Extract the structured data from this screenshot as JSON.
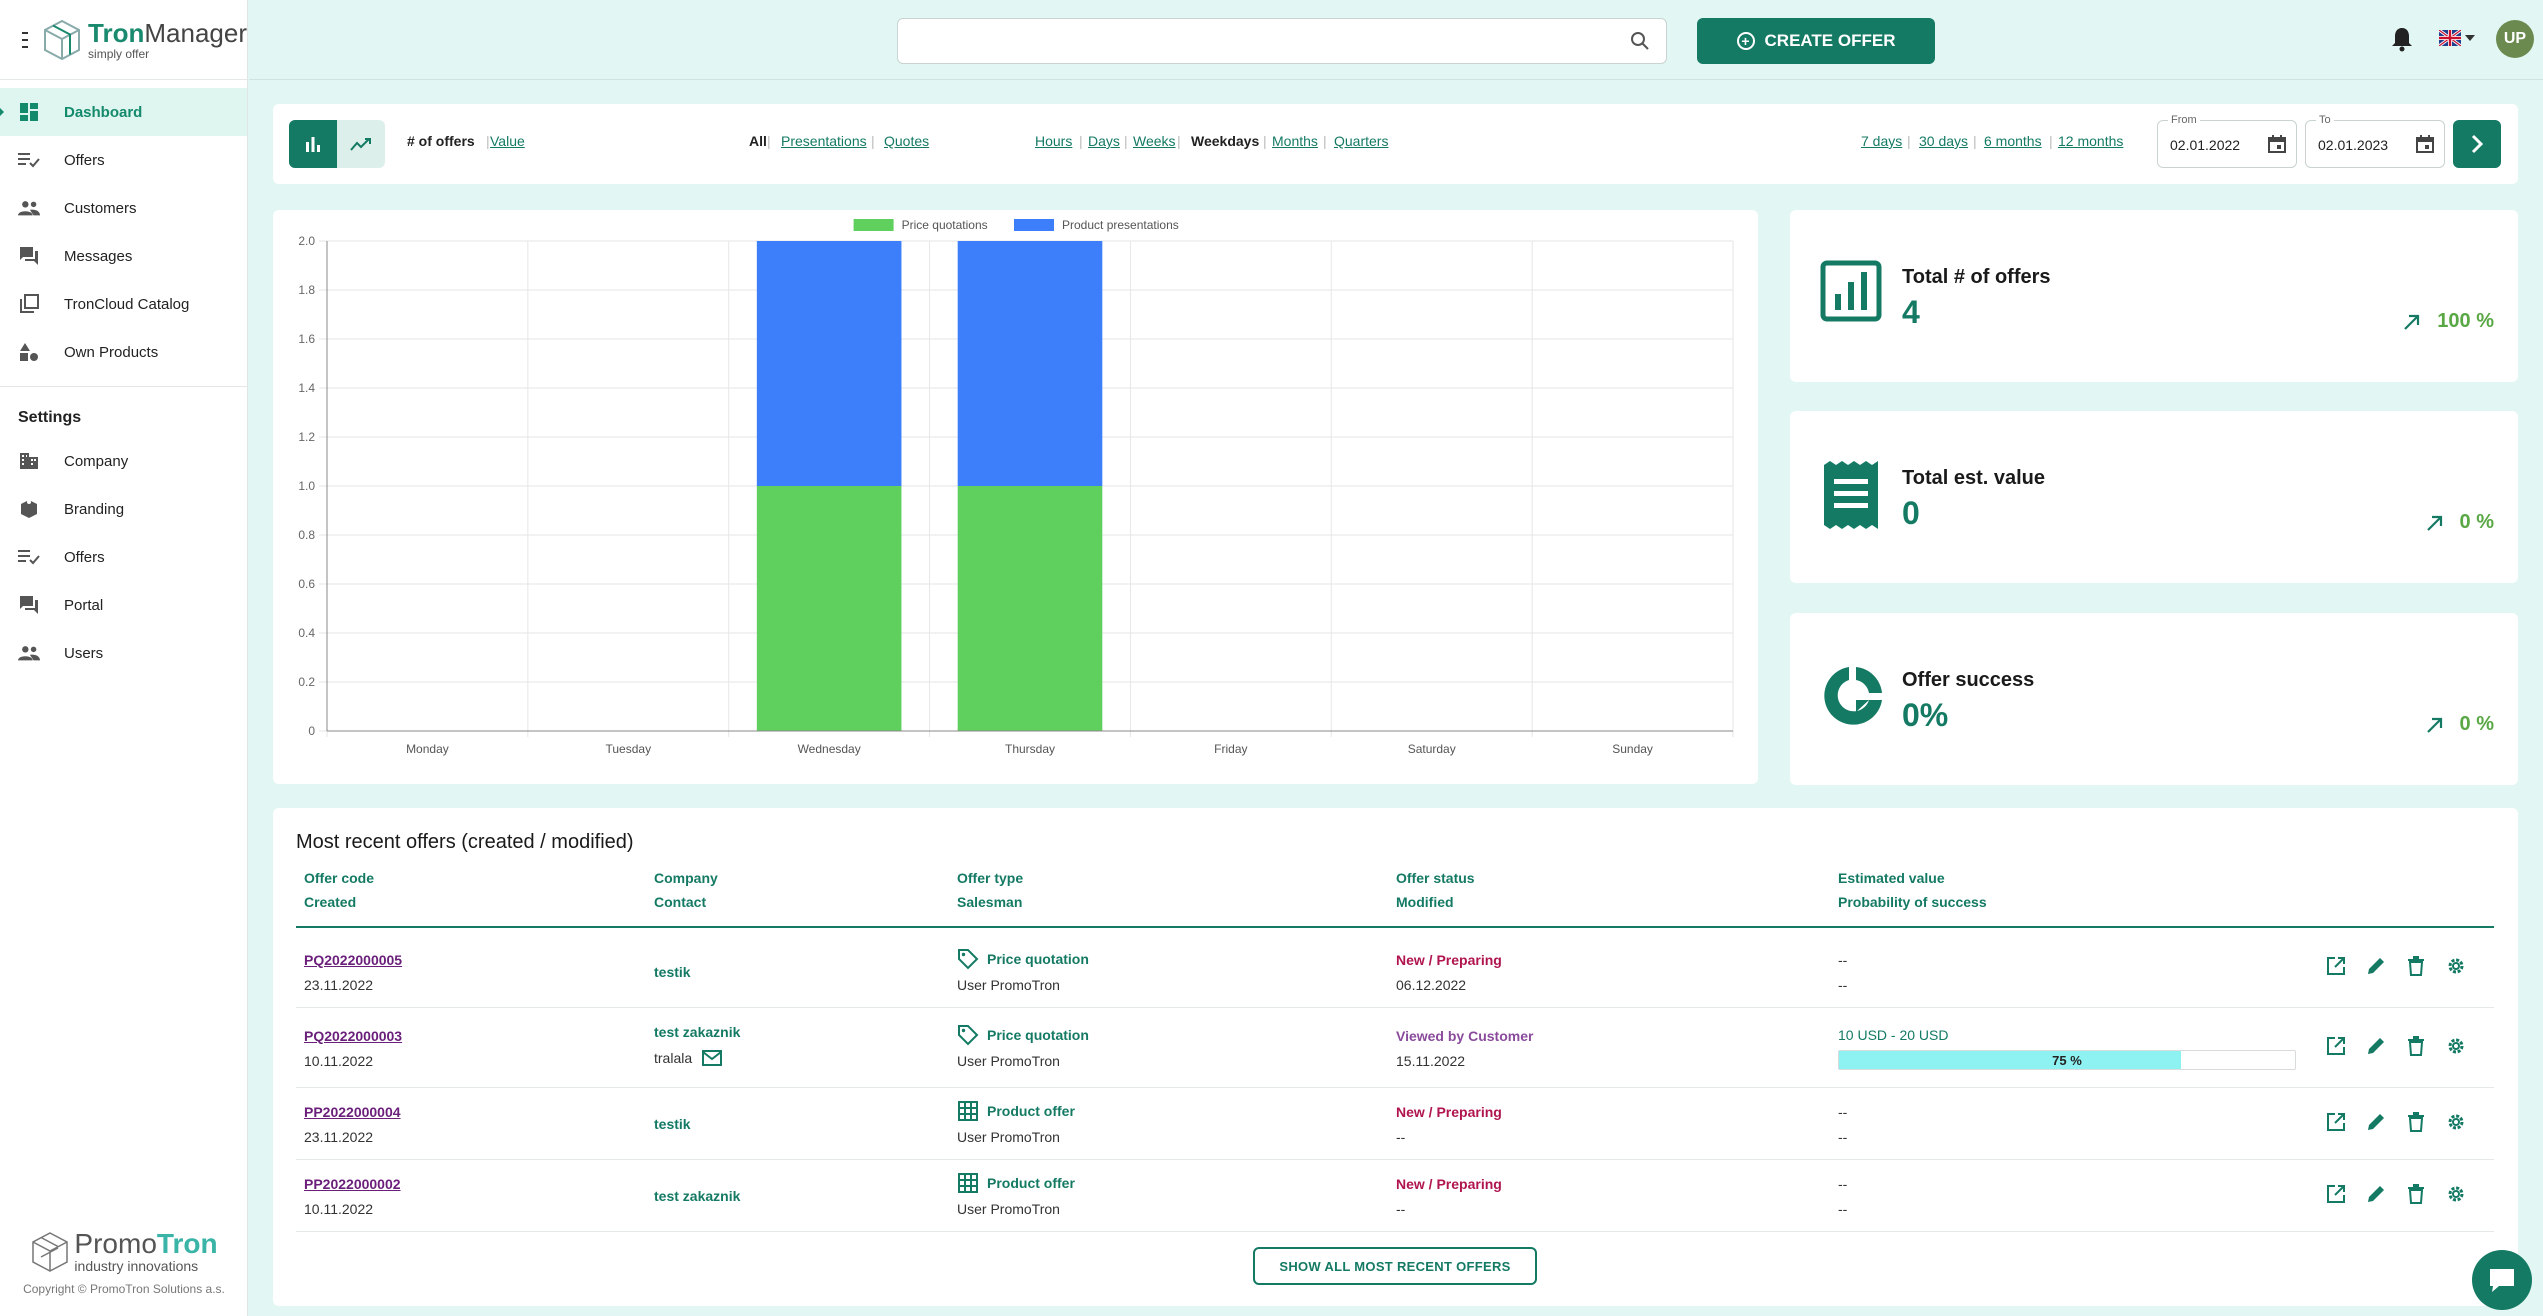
{
  "app": {
    "title_bold": "Tron",
    "title_rest": "Manager",
    "subtitle": "simply offer"
  },
  "sidebar": {
    "items": [
      {
        "label": "Dashboard",
        "icon": "dashboard-icon"
      },
      {
        "label": "Offers",
        "icon": "list-check-icon"
      },
      {
        "label": "Customers",
        "icon": "people-icon"
      },
      {
        "label": "Messages",
        "icon": "chat-icon"
      },
      {
        "label": "TronCloud Catalog",
        "icon": "catalog-icon"
      },
      {
        "label": "Own Products",
        "icon": "shapes-icon"
      }
    ],
    "settings_title": "Settings",
    "settings_items": [
      {
        "label": "Company",
        "icon": "building-icon"
      },
      {
        "label": "Branding",
        "icon": "branding-icon"
      },
      {
        "label": "Offers",
        "icon": "list-check-icon"
      },
      {
        "label": "Portal",
        "icon": "chat-icon"
      },
      {
        "label": "Users",
        "icon": "people-icon"
      }
    ],
    "footer": {
      "brand_a": "Promo",
      "brand_b": "Tron",
      "brand_sub": "industry innovations",
      "copyright": "Copyright © PromoTron Solutions a.s."
    }
  },
  "topbar": {
    "search_placeholder": "",
    "create_label": "CREATE OFFER",
    "avatar_initials": "UP"
  },
  "filters": {
    "metrics": [
      "# of offers",
      "Value"
    ],
    "types": [
      "All",
      "Presentations",
      "Quotes"
    ],
    "granularity": [
      "Hours",
      "Days",
      "Weeks",
      "Weekdays",
      "Months",
      "Quarters"
    ],
    "periods": [
      "7 days",
      "30 days",
      "6 months",
      "12 months"
    ],
    "from_label": "From",
    "from_value": "02.01.2022",
    "to_label": "To",
    "to_value": "02.01.2023",
    "selected_metric": "# of offers",
    "selected_type": "All",
    "selected_granularity": "Weekdays"
  },
  "chart_data": {
    "type": "bar",
    "stacked": true,
    "categories": [
      "Monday",
      "Tuesday",
      "Wednesday",
      "Thursday",
      "Friday",
      "Saturday",
      "Sunday"
    ],
    "series": [
      {
        "name": "Price quotations",
        "color": "#5fcf5d",
        "values": [
          0,
          0,
          1,
          1,
          0,
          0,
          0
        ]
      },
      {
        "name": "Product presentations",
        "color": "#3d7ffb",
        "values": [
          0,
          0,
          1,
          1,
          0,
          0,
          0
        ]
      }
    ],
    "ylim": [
      0,
      2.0
    ],
    "yticks": [
      "0",
      "0.2",
      "0.4",
      "0.6",
      "0.8",
      "1.0",
      "1.2",
      "1.4",
      "1.6",
      "1.8",
      "2.0"
    ],
    "legend": "top",
    "grid": true
  },
  "stats": [
    {
      "label": "Total # of offers",
      "value": "4",
      "trend": "100 %",
      "icon": "bar-chart-icon"
    },
    {
      "label": "Total est. value",
      "value": "0",
      "trend": "0 %",
      "icon": "receipt-icon"
    },
    {
      "label": "Offer success",
      "value": "0%",
      "trend": "0 %",
      "icon": "pie-chart-icon"
    }
  ],
  "table": {
    "title": "Most recent offers (created / modified)",
    "headers": {
      "code": "Offer code",
      "created": "Created",
      "company": "Company",
      "contact": "Contact",
      "type": "Offer type",
      "salesman": "Salesman",
      "status": "Offer status",
      "modified": "Modified",
      "value": "Estimated value",
      "prob": "Probability of success"
    },
    "rows": [
      {
        "code": "PQ2022000005",
        "created": "23.11.2022",
        "company": "testik",
        "contact": "",
        "type": "Price quotation",
        "type_icon": "tag-icon",
        "salesman": "User PromoTron",
        "status": "New / Preparing",
        "modified": "06.12.2022",
        "value": "--",
        "prob": "--"
      },
      {
        "code": "PQ2022000003",
        "created": "10.11.2022",
        "company": "test zakaznik",
        "contact": "tralala",
        "type": "Price quotation",
        "type_icon": "tag-icon",
        "salesman": "User PromoTron",
        "status": "Viewed by Customer",
        "modified": "15.11.2022",
        "value": "10 USD - 20 USD",
        "prob": "75 %",
        "prob_fraction": 0.75
      },
      {
        "code": "PP2022000004",
        "created": "23.11.2022",
        "company": "testik",
        "contact": "",
        "type": "Product offer",
        "type_icon": "grid-icon",
        "salesman": "User PromoTron",
        "status": "New / Preparing",
        "modified": "--",
        "value": "--",
        "prob": "--"
      },
      {
        "code": "PP2022000002",
        "created": "10.11.2022",
        "company": "test zakaznik",
        "contact": "",
        "type": "Product offer",
        "type_icon": "grid-icon",
        "salesman": "User PromoTron",
        "status": "New / Preparing",
        "modified": "--",
        "value": "--",
        "prob": "--"
      }
    ],
    "show_all_label": "SHOW ALL MOST RECENT OFFERS"
  },
  "colors": {
    "primary": "#147a64",
    "background": "#e2f7f3",
    "status_new": "#b0154f",
    "status_viewed": "#8a4b9c",
    "progress": "#8ef2f2"
  }
}
